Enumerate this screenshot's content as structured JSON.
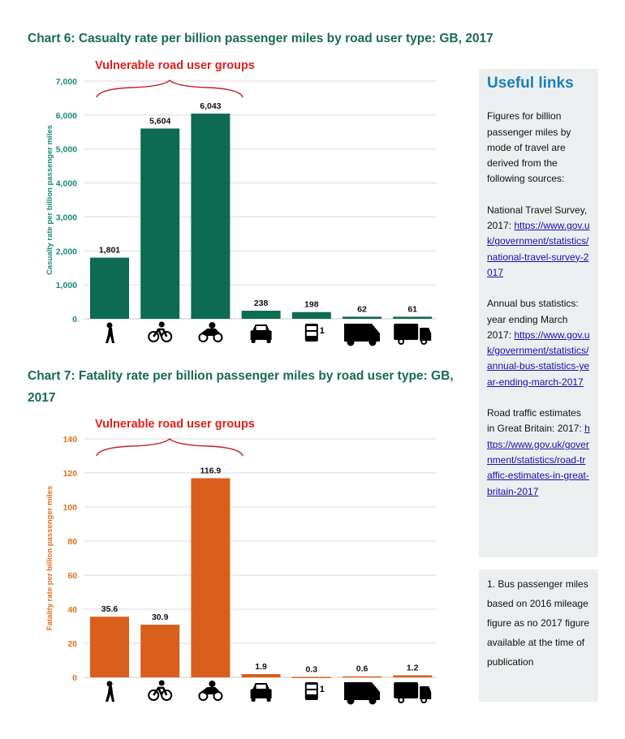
{
  "chart_data": [
    {
      "type": "bar",
      "title": "Chart 6:  Casualty rate per billion passenger miles by road user type: GB, 2017",
      "ylabel": "Casualty rate per billion passenger miles",
      "ylim": [
        0,
        7000
      ],
      "yticks": [
        "0",
        "1,000",
        "2,000",
        "3,000",
        "4,000",
        "5,000",
        "6,000",
        "7,000"
      ],
      "categories": [
        "pedestrian-icon",
        "pedal-cycle-icon",
        "motorcycle-icon",
        "car-icon",
        "bus-icon",
        "van-icon",
        "lorry-icon"
      ],
      "values": [
        1801,
        5604,
        6043,
        238,
        198,
        62,
        61
      ],
      "data_labels": [
        "1,801",
        "5,604",
        "6,043",
        "238",
        "198",
        "62",
        "61"
      ],
      "annotation": "Vulnerable road user groups",
      "footnote_marker": "1",
      "grid": true,
      "color": "#0d6b52"
    },
    {
      "type": "bar",
      "title": "Chart 7:  Fatality rate per billion passenger miles by road user type: GB, 2017",
      "ylabel": "Fatality rate per billion passenger miles",
      "ylim": [
        0,
        140
      ],
      "yticks": [
        "0",
        "20",
        "40",
        "60",
        "80",
        "100",
        "120",
        "140"
      ],
      "categories": [
        "pedestrian-icon",
        "pedal-cycle-icon",
        "motorcycle-icon",
        "car-icon",
        "bus-icon",
        "van-icon",
        "lorry-icon"
      ],
      "values": [
        35.6,
        30.9,
        116.9,
        1.9,
        0.3,
        0.6,
        1.2
      ],
      "data_labels": [
        "35.6",
        "30.9",
        "116.9",
        "1.9",
        "0.3",
        "0.6",
        "1.2"
      ],
      "annotation": "Vulnerable road user groups",
      "footnote_marker": "1",
      "grid": true,
      "color": "#d8601c"
    }
  ],
  "sidebar": {
    "heading": "Useful links",
    "intro": "Figures for billion passenger miles by mode of travel are derived from the following sources:",
    "sources": [
      {
        "label": "National Travel Survey, 2017: ",
        "link": "https://www.gov.uk/government/statistics/national-travel-survey-2017"
      },
      {
        "label": "Annual bus statistics: year ending March 2017: ",
        "link": "https://www.gov.uk/government/statistics/annual-bus-statistics-year-ending-march-2017"
      },
      {
        "label": "Road traffic estimates in Great Britain: 2017: ",
        "link": "https://www.gov.uk/government/statistics/road-traffic-estimates-in-great-britain-2017"
      }
    ],
    "note": "1. Bus passenger miles based on 2016 mileage figure as no 2017 figure available at the time of publication"
  },
  "colors": {
    "title": "#1a6b4f",
    "annotation": "#e0201c",
    "link_heading": "#1c7fb8",
    "panel": "#eceff0"
  }
}
